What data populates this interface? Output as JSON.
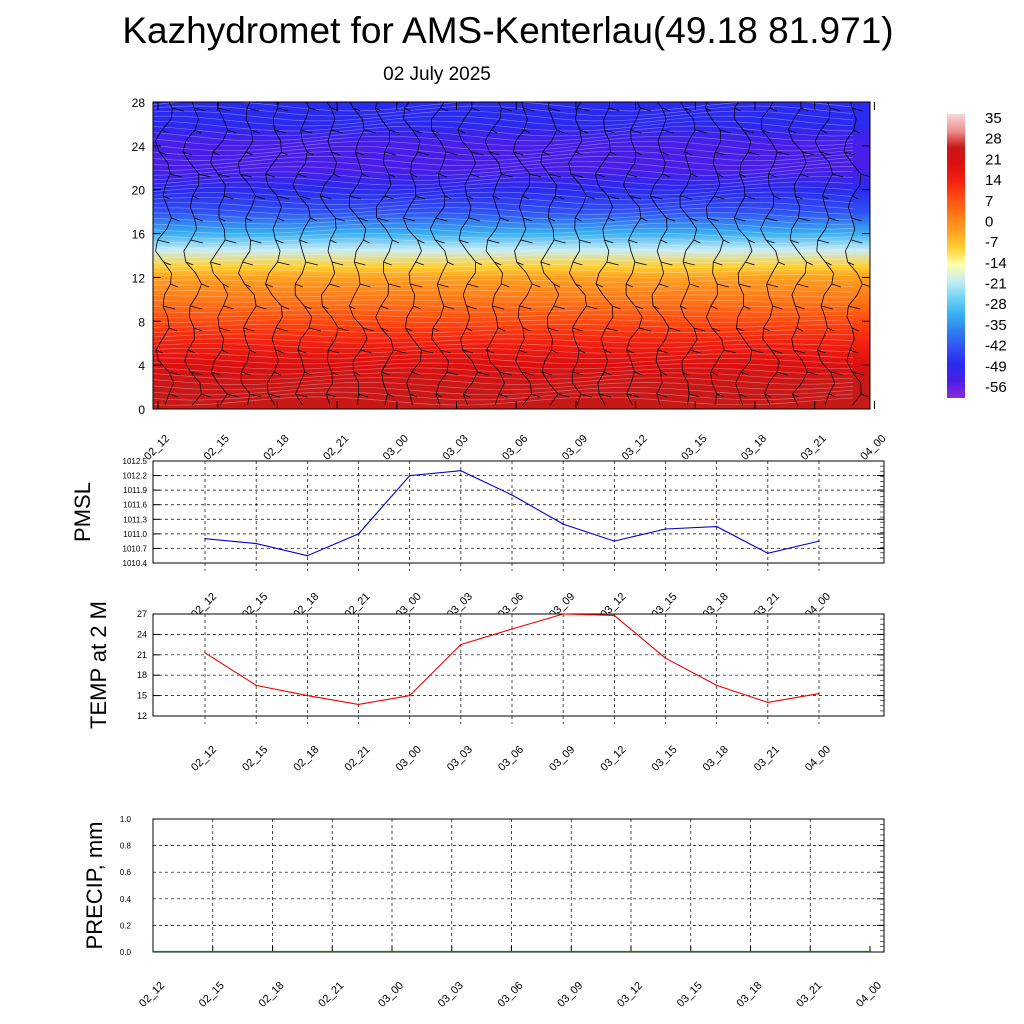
{
  "title": "Kazhydromet for AMS-Kenterlau(49.18 81.971)",
  "subtitle": "02 July 2025",
  "chart_data": [
    {
      "type": "heatmap",
      "name": "vertical-cross-section",
      "x_tick_labels": [
        "02_12",
        "02_15",
        "02_18",
        "02_21",
        "03_00",
        "03_03",
        "03_06",
        "03_09",
        "03_12",
        "03_15",
        "03_18",
        "03_21",
        "04_00"
      ],
      "y_ticks": [
        0,
        4,
        8,
        12,
        16,
        20,
        24,
        28
      ],
      "ylim": [
        0,
        28
      ],
      "colorbar_labels": [
        "35",
        "28",
        "21",
        "14",
        "7",
        "0",
        "-7",
        "-14",
        "-21",
        "-28",
        "-35",
        "-42",
        "-49",
        "-56"
      ],
      "colorbar_range": [
        -60,
        38
      ],
      "profile": [
        {
          "y": 0,
          "t": 28
        },
        {
          "y": 2,
          "t": 25
        },
        {
          "y": 4,
          "t": 21
        },
        {
          "y": 6,
          "t": 17
        },
        {
          "y": 8,
          "t": 12
        },
        {
          "y": 10,
          "t": 6
        },
        {
          "y": 12,
          "t": 0
        },
        {
          "y": 13,
          "t": -8
        },
        {
          "y": 14.5,
          "t": -18
        },
        {
          "y": 16,
          "t": -30
        },
        {
          "y": 18,
          "t": -45
        },
        {
          "y": 20,
          "t": -50
        },
        {
          "y": 22,
          "t": -55
        },
        {
          "y": 24,
          "t": -52
        },
        {
          "y": 26,
          "t": -50
        },
        {
          "y": 28,
          "t": -49
        }
      ],
      "colors": {
        "scale": [
          "#8b2bd9",
          "#4a1ee8",
          "#2a2af0",
          "#3050f5",
          "#2f7ff0",
          "#38b0f0",
          "#6fd4f5",
          "#c8ecf5",
          "#ffffa8",
          "#ffd030",
          "#ffa020",
          "#ff7818",
          "#ff4a10",
          "#f22010",
          "#dc1010",
          "#c81818",
          "#ef9090",
          "#f8d8d8"
        ]
      }
    },
    {
      "type": "line",
      "name": "pmsl",
      "ylabel": "PMSL",
      "categories": [
        "02_12",
        "02_15",
        "02_18",
        "02_21",
        "03_00",
        "03_03",
        "03_06",
        "03_09",
        "03_12",
        "03_15",
        "03_18",
        "03_21",
        "04_00"
      ],
      "y_tick_labels": [
        "1010.4",
        "1010.7",
        "1011.0",
        "1011.3",
        "1011.6",
        "1011.9",
        "1012.2",
        "1012.5"
      ],
      "ylim": [
        1010.4,
        1012.5
      ],
      "series": [
        {
          "values": [
            1010.9,
            1010.8,
            1010.55,
            1011.0,
            1012.2,
            1012.3,
            1011.8,
            1011.2,
            1010.85,
            1011.1,
            1011.15,
            1010.6,
            1010.85
          ]
        }
      ],
      "colors": {
        "line": "#0000cc"
      }
    },
    {
      "type": "line",
      "name": "temp-2m",
      "ylabel": "TEMP at 2 M",
      "categories": [
        "02_12",
        "02_15",
        "02_18",
        "02_21",
        "03_00",
        "03_03",
        "03_06",
        "03_09",
        "03_12",
        "03_15",
        "03_18",
        "03_21",
        "04_00"
      ],
      "y_tick_labels": [
        "12",
        "15",
        "18",
        "21",
        "24",
        "27"
      ],
      "ylim": [
        12,
        27
      ],
      "series": [
        {
          "values": [
            21.3,
            16.5,
            15.0,
            13.7,
            15.0,
            22.5,
            24.8,
            27.0,
            26.8,
            20.5,
            16.5,
            14.0,
            15.3
          ]
        }
      ],
      "colors": {
        "line": "#ee0000"
      }
    },
    {
      "type": "line",
      "name": "precip",
      "ylabel": "PRECIP, mm",
      "categories": [
        "02_12",
        "02_15",
        "02_18",
        "02_21",
        "03_00",
        "03_03",
        "03_06",
        "03_09",
        "03_12",
        "03_15",
        "03_18",
        "03_21",
        "04_00"
      ],
      "y_tick_labels": [
        "0.0",
        "0.2",
        "0.4",
        "0.6",
        "0.8",
        "1.0"
      ],
      "ylim": [
        0,
        1
      ],
      "series": [
        {
          "values": [
            0,
            0,
            0,
            0,
            0,
            0,
            0,
            0,
            0,
            0,
            0,
            0,
            0
          ]
        }
      ],
      "colors": {
        "line": "#008800"
      }
    }
  ]
}
